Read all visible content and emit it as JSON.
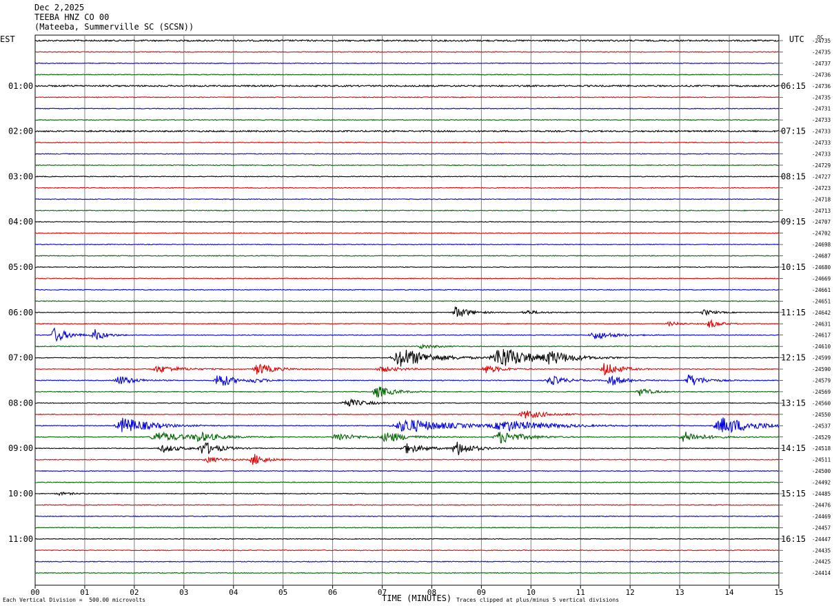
{
  "header": {
    "date": "Dec 2,2025",
    "station": "TEEBA HNZ CO 00",
    "location": "(Mateeba, Summerville SC (SCSN))"
  },
  "left_timezone": "EST",
  "right_timezone": "UTC",
  "dc_label": "DC",
  "footer": {
    "scale": "Each Vertical Division =  500.00 microvolts",
    "clip": "Traces clipped at plus/minus 5 vertical divisions"
  },
  "colors": {
    "trace_cycle": [
      "#000000",
      "#e00000",
      "#0000e0",
      "#006400"
    ],
    "grid": "#808080"
  },
  "chart_data": {
    "type": "line",
    "xlabel": "TIME (MINUTES)",
    "x_ticks": [
      "00",
      "01",
      "02",
      "03",
      "04",
      "05",
      "06",
      "07",
      "08",
      "09",
      "10",
      "11",
      "12",
      "13",
      "14",
      "15"
    ],
    "xlim": [
      0,
      15
    ],
    "rows": 48,
    "left_hour_labels": [
      "01:00",
      "02:00",
      "03:00",
      "04:00",
      "05:00",
      "06:00",
      "07:00",
      "08:00",
      "09:00",
      "10:00",
      "11:00"
    ],
    "right_hour_labels": [
      "06:15",
      "07:15",
      "08:15",
      "09:15",
      "10:15",
      "11:15",
      "12:15",
      "13:15",
      "14:15",
      "15:15",
      "16:15"
    ],
    "dc_offsets": [
      "-24735",
      "-24735",
      "-24737",
      "-24736",
      "-24736",
      "-24735",
      "-24731",
      "-24733",
      "-24733",
      "-24733",
      "-24733",
      "-24729",
      "-24727",
      "-24723",
      "-24718",
      "-24713",
      "-24707",
      "-24702",
      "-24698",
      "-24687",
      "-24680",
      "-24669",
      "-24661",
      "-24651",
      "-24642",
      "-24631",
      "-24617",
      "-24610",
      "-24599",
      "-24590",
      "-24579",
      "-24569",
      "-24560",
      "-24550",
      "-24537",
      "-24529",
      "-24518",
      "-24511",
      "-24500",
      "-24492",
      "-24485",
      "-24476",
      "-24469",
      "-24457",
      "-24447",
      "-24435",
      "-24425",
      "-24414"
    ],
    "noise_level": [
      2,
      1,
      1,
      1,
      2,
      1,
      1,
      1,
      2,
      1,
      1,
      1,
      1,
      1,
      1,
      1,
      1,
      1,
      1,
      1,
      1,
      1,
      1,
      1,
      1,
      1,
      1,
      1,
      1,
      1,
      1,
      1,
      1,
      1,
      1,
      1,
      1,
      1,
      1,
      1,
      1,
      1,
      1,
      1,
      1,
      1,
      1,
      1
    ],
    "events": [
      {
        "row": 24,
        "minute": 8.5,
        "amp": 9,
        "dur": 0.35
      },
      {
        "row": 24,
        "minute": 9.9,
        "amp": 3,
        "dur": 0.4
      },
      {
        "row": 24,
        "minute": 13.5,
        "amp": 4,
        "dur": 0.3
      },
      {
        "row": 25,
        "minute": 13.6,
        "amp": 6,
        "dur": 0.3
      },
      {
        "row": 25,
        "minute": 12.8,
        "amp": 3,
        "dur": 0.3
      },
      {
        "row": 26,
        "minute": 0.4,
        "amp": 11,
        "dur": 0.35
      },
      {
        "row": 26,
        "minute": 1.2,
        "amp": 8,
        "dur": 0.3
      },
      {
        "row": 26,
        "minute": 11.3,
        "amp": 6,
        "dur": 0.5
      },
      {
        "row": 27,
        "minute": 7.8,
        "amp": 3,
        "dur": 0.4
      },
      {
        "row": 28,
        "minute": 7.4,
        "amp": 14,
        "dur": 0.8
      },
      {
        "row": 28,
        "minute": 9.4,
        "amp": 16,
        "dur": 0.8
      },
      {
        "row": 28,
        "minute": 10.4,
        "amp": 8,
        "dur": 0.6
      },
      {
        "row": 29,
        "minute": 2.5,
        "amp": 5,
        "dur": 0.6
      },
      {
        "row": 29,
        "minute": 4.5,
        "amp": 9,
        "dur": 0.4
      },
      {
        "row": 29,
        "minute": 7.0,
        "amp": 4,
        "dur": 0.5
      },
      {
        "row": 29,
        "minute": 9.1,
        "amp": 6,
        "dur": 0.4
      },
      {
        "row": 29,
        "minute": 11.5,
        "amp": 10,
        "dur": 0.4
      },
      {
        "row": 30,
        "minute": 1.7,
        "amp": 7,
        "dur": 0.4
      },
      {
        "row": 30,
        "minute": 3.7,
        "amp": 12,
        "dur": 0.35
      },
      {
        "row": 30,
        "minute": 4.4,
        "amp": 3,
        "dur": 0.4
      },
      {
        "row": 30,
        "minute": 10.4,
        "amp": 7,
        "dur": 0.4
      },
      {
        "row": 30,
        "minute": 11.6,
        "amp": 8,
        "dur": 0.4
      },
      {
        "row": 30,
        "minute": 13.2,
        "amp": 9,
        "dur": 0.4
      },
      {
        "row": 31,
        "minute": 6.9,
        "amp": 9,
        "dur": 0.4
      },
      {
        "row": 31,
        "minute": 12.2,
        "amp": 6,
        "dur": 0.3
      },
      {
        "row": 32,
        "minute": 6.3,
        "amp": 6,
        "dur": 0.5
      },
      {
        "row": 33,
        "minute": 9.9,
        "amp": 6,
        "dur": 0.6
      },
      {
        "row": 34,
        "minute": 1.8,
        "amp": 12,
        "dur": 0.7
      },
      {
        "row": 34,
        "minute": 7.5,
        "amp": 10,
        "dur": 1.2
      },
      {
        "row": 34,
        "minute": 9.5,
        "amp": 7,
        "dur": 1.2
      },
      {
        "row": 34,
        "minute": 13.9,
        "amp": 12,
        "dur": 0.9
      },
      {
        "row": 35,
        "minute": 2.5,
        "amp": 7,
        "dur": 0.8
      },
      {
        "row": 35,
        "minute": 3.3,
        "amp": 6,
        "dur": 0.5
      },
      {
        "row": 35,
        "minute": 6.1,
        "amp": 6,
        "dur": 0.5
      },
      {
        "row": 35,
        "minute": 7.1,
        "amp": 8,
        "dur": 0.5
      },
      {
        "row": 35,
        "minute": 9.4,
        "amp": 9,
        "dur": 0.6
      },
      {
        "row": 35,
        "minute": 13.1,
        "amp": 8,
        "dur": 0.5
      },
      {
        "row": 36,
        "minute": 2.6,
        "amp": 5,
        "dur": 0.5
      },
      {
        "row": 36,
        "minute": 3.4,
        "amp": 10,
        "dur": 0.4
      },
      {
        "row": 36,
        "minute": 7.5,
        "amp": 7,
        "dur": 0.5
      },
      {
        "row": 36,
        "minute": 8.5,
        "amp": 11,
        "dur": 0.4
      },
      {
        "row": 37,
        "minute": 3.5,
        "amp": 4,
        "dur": 0.4
      },
      {
        "row": 37,
        "minute": 4.4,
        "amp": 9,
        "dur": 0.3
      },
      {
        "row": 40,
        "minute": 0.5,
        "amp": 2,
        "dur": 0.4
      }
    ]
  }
}
